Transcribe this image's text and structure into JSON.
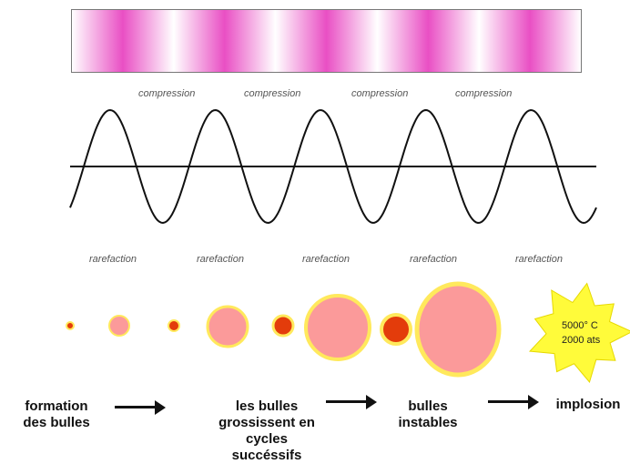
{
  "band": {
    "light_color": "#ffffff",
    "dark_color": "#e94fc4",
    "cycles": 5
  },
  "wave": {
    "cycles": 5,
    "line_color": "#111111"
  },
  "labels": {
    "compression": [
      "compression",
      "compression",
      "compression",
      "compression"
    ],
    "rarefaction": [
      "rarefaction",
      "rarefaction",
      "rarefaction",
      "rarefaction",
      "rarefaction"
    ]
  },
  "bubbles": {
    "fill_light": "#fb9a9a",
    "fill_dark": "#e33c0b",
    "halo": "#ffe95c"
  },
  "implosion": {
    "temperature": "5000° C",
    "pressure": "2000 ats",
    "color": "#fffb3a"
  },
  "stages": {
    "formation": "formation\ndes bulles",
    "growth": "les bulles\ngrossissent en\ncycles\nsuccéssifs",
    "unstable": "bulles\ninstables",
    "implosion": "implosion"
  }
}
